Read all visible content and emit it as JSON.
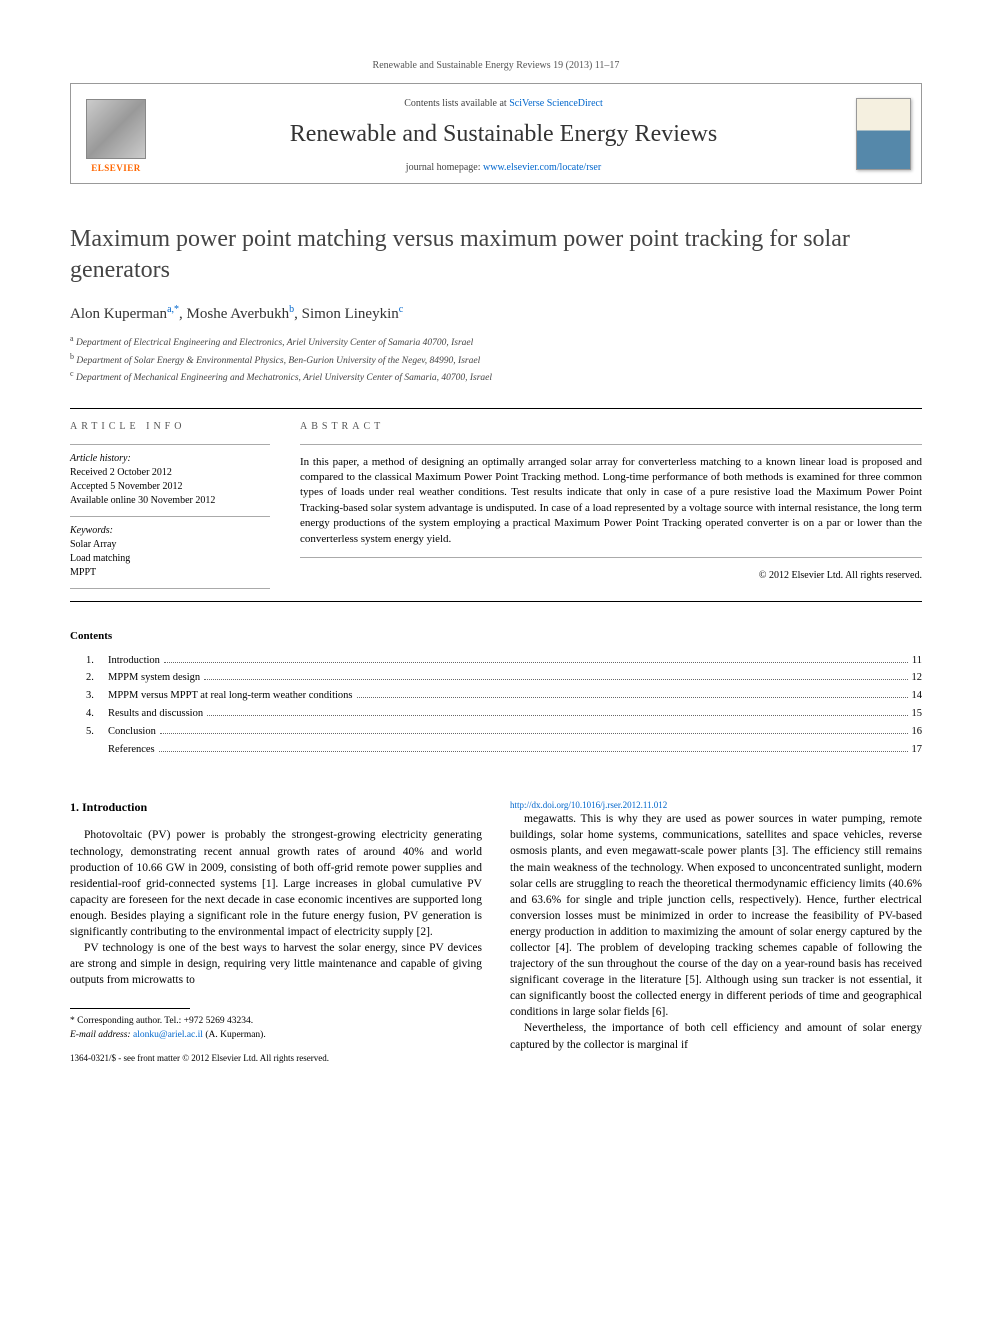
{
  "header": {
    "citation": "Renewable and Sustainable Energy Reviews 19 (2013) 11–17",
    "contents_prefix": "Contents lists available at ",
    "contents_link": "SciVerse ScienceDirect",
    "journal_title": "Renewable and Sustainable Energy Reviews",
    "homepage_prefix": "journal homepage: ",
    "homepage_link": "www.elsevier.com/locate/rser",
    "publisher_label": "ELSEVIER"
  },
  "article": {
    "title": "Maximum power point matching versus maximum power point tracking for solar generators",
    "authors": [
      {
        "name": "Alon Kuperman",
        "sup": "a,",
        "star": "*"
      },
      {
        "name": "Moshe Averbukh",
        "sup": "b"
      },
      {
        "name": "Simon Lineykin",
        "sup": "c"
      }
    ],
    "affiliations": [
      {
        "sup": "a",
        "text": "Department of Electrical Engineering and Electronics, Ariel University Center of Samaria 40700, Israel"
      },
      {
        "sup": "b",
        "text": "Department of Solar Energy & Environmental Physics, Ben-Gurion University of the Negev, 84990, Israel"
      },
      {
        "sup": "c",
        "text": "Department of Mechanical Engineering and Mechatronics, Ariel University Center of Samaria, 40700, Israel"
      }
    ]
  },
  "info": {
    "article_info_label": "ARTICLE INFO",
    "history_label": "Article history:",
    "history": [
      "Received 2 October 2012",
      "Accepted 5 November 2012",
      "Available online 30 November 2012"
    ],
    "keywords_label": "Keywords:",
    "keywords": [
      "Solar Array",
      "Load matching",
      "MPPT"
    ]
  },
  "abstract": {
    "label": "ABSTRACT",
    "text": "In this paper, a method of designing an optimally arranged solar array for converterless matching to a known linear load is proposed and compared to the classical Maximum Power Point Tracking method. Long-time performance of both methods is examined for three common types of loads under real weather conditions. Test results indicate that only in case of a pure resistive load the Maximum Power Point Tracking-based solar system advantage is undisputed. In case of a load represented by a voltage source with internal resistance, the long term energy productions of the system employing a practical Maximum Power Point Tracking operated converter is on a par or lower than the converterless system energy yield.",
    "copyright": "© 2012 Elsevier Ltd. All rights reserved."
  },
  "contents": {
    "heading": "Contents",
    "items": [
      {
        "num": "1.",
        "title": "Introduction",
        "page": "11"
      },
      {
        "num": "2.",
        "title": "MPPM system design",
        "page": "12"
      },
      {
        "num": "3.",
        "title": "MPPM versus MPPT at real long-term weather conditions",
        "page": "14"
      },
      {
        "num": "4.",
        "title": "Results and discussion",
        "page": "15"
      },
      {
        "num": "5.",
        "title": "Conclusion",
        "page": "16"
      },
      {
        "num": "",
        "title": "References",
        "page": "17"
      }
    ]
  },
  "body": {
    "heading": "1. Introduction",
    "p1": "Photovoltaic (PV) power is probably the strongest-growing electricity generating technology, demonstrating recent annual growth rates of around 40% and world production of 10.66 GW in 2009, consisting of both off-grid remote power supplies and residential-roof grid-connected systems [1]. Large increases in global cumulative PV capacity are foreseen for the next decade in case economic incentives are supported long enough. Besides playing a significant role in the future energy fusion, PV generation is significantly contributing to the environmental impact of electricity supply [2].",
    "p2": "PV technology is one of the best ways to harvest the solar energy, since PV devices are strong and simple in design, requiring very little maintenance and capable of giving outputs from microwatts to",
    "p3": "megawatts. This is why they are used as power sources in water pumping, remote buildings, solar home systems, communications, satellites and space vehicles, reverse osmosis plants, and even megawatt-scale power plants [3]. The efficiency still remains the main weakness of the technology. When exposed to unconcentrated sunlight, modern solar cells are struggling to reach the theoretical thermodynamic efficiency limits (40.6% and 63.6% for single and triple junction cells, respectively). Hence, further electrical conversion losses must be minimized in order to increase the feasibility of PV-based energy production in addition to maximizing the amount of solar energy captured by the collector [4]. The problem of developing tracking schemes capable of following the trajectory of the sun throughout the course of the day on a year-round basis has received significant coverage in the literature [5]. Although using sun tracker is not essential, it can significantly boost the collected energy in different periods of time and geographical conditions in large solar fields [6].",
    "p4": "Nevertheless, the importance of both cell efficiency and amount of solar energy captured by the collector is marginal if"
  },
  "footnote": {
    "corr_label": "* Corresponding author. Tel.: +972 5269 43234.",
    "email_label": "E-mail address:",
    "email": "alonku@ariel.ac.il",
    "email_paren": "(A. Kuperman)."
  },
  "bottom": {
    "line1": "1364-0321/$ - see front matter © 2012 Elsevier Ltd. All rights reserved.",
    "doi_link": "http://dx.doi.org/10.1016/j.rser.2012.11.012"
  },
  "colors": {
    "link": "#0066cc",
    "elsevier_orange": "#ff6600",
    "text": "#000000",
    "muted": "#555555"
  }
}
